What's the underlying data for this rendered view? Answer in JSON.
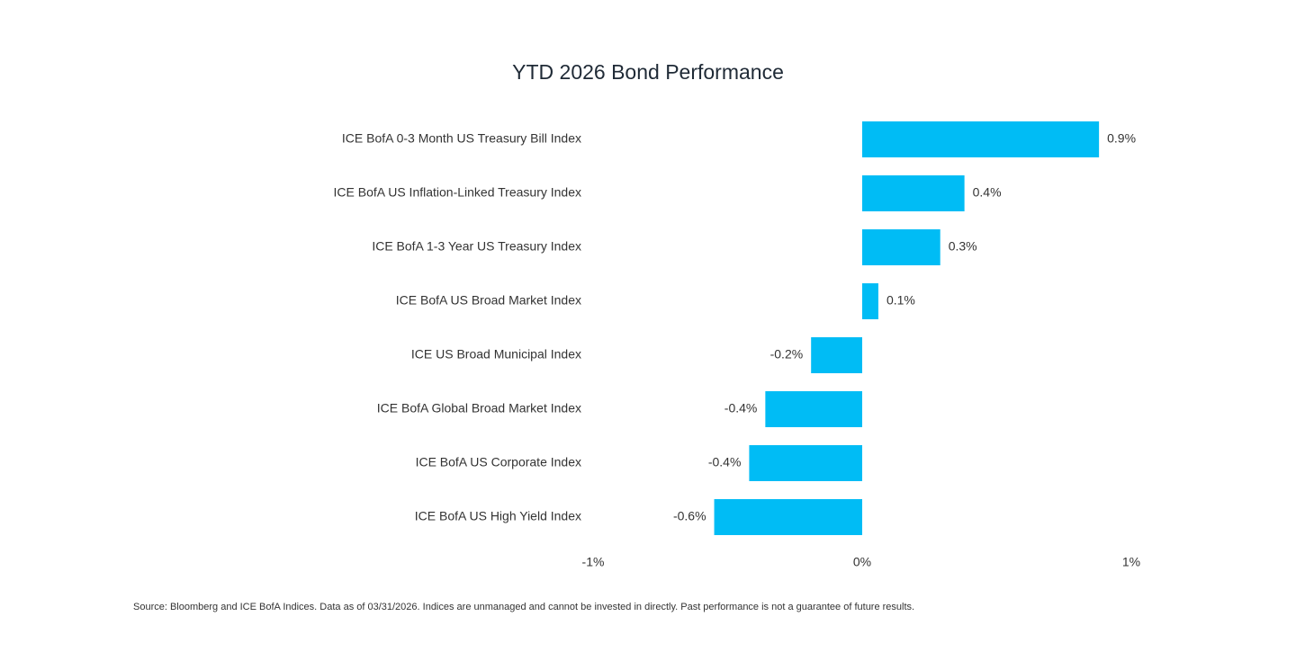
{
  "chart_data": {
    "type": "bar",
    "orientation": "horizontal",
    "title": "YTD 2026 Bond Performance",
    "categories": [
      "ICE BofA 0-3 Month US Treasury Bill Index",
      "ICE BofA US Inflation-Linked Treasury Index",
      "ICE BofA 1-3 Year US Treasury Index",
      "ICE BofA US Broad Market Index",
      "ICE US Broad Municipal Index",
      "ICE BofA Global Broad Market Index",
      "ICE BofA US Corporate Index",
      "ICE BofA US High Yield Index"
    ],
    "values": [
      0.88,
      0.38,
      0.29,
      0.06,
      -0.19,
      -0.36,
      -0.42,
      -0.55
    ],
    "value_labels": [
      "0.9%",
      "0.4%",
      "0.3%",
      "0.1%",
      "-0.2%",
      "-0.4%",
      "-0.4%",
      "-0.6%"
    ],
    "color": "#00bcf5",
    "xlim": [
      -1,
      1
    ],
    "xticks": [
      {
        "value": -1,
        "label": "-1%"
      },
      {
        "value": 0,
        "label": "0%"
      },
      {
        "value": 1,
        "label": "1%"
      }
    ],
    "grid": false,
    "note": "Source: Bloomberg and ICE BofA Indices. Data as of 03/31/2026. Indices are unmanaged and cannot be invested in directly. Past performance is not a guarantee of future results."
  }
}
